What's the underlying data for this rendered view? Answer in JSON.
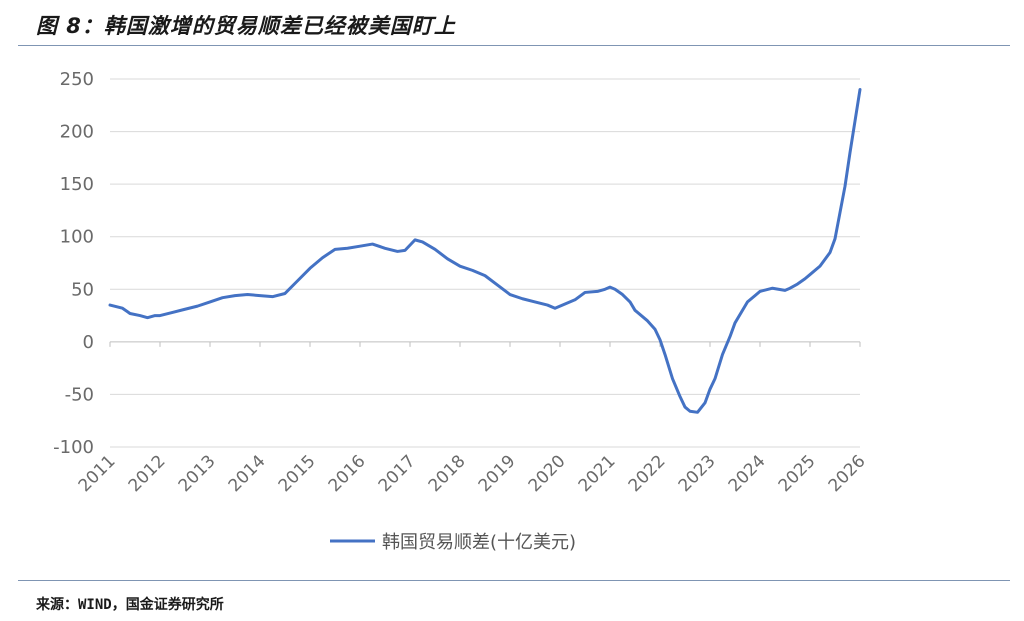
{
  "figure": {
    "title": "图 8：韩国激增的贸易顺差已经被美国盯上",
    "source": "来源：WIND，国金证券研究所"
  },
  "chart_data": {
    "type": "line",
    "title": "",
    "xlabel": "",
    "ylabel": "",
    "ylim": [
      -100,
      250
    ],
    "xlim": [
      2011,
      2026
    ],
    "yticks": [
      "-100",
      "-50",
      "0",
      "50",
      "100",
      "150",
      "200",
      "250"
    ],
    "xticks": [
      "2011",
      "2012",
      "2013",
      "2014",
      "2015",
      "2016",
      "2017",
      "2018",
      "2019",
      "2020",
      "2021",
      "2022",
      "2023",
      "2024",
      "2025",
      "2026"
    ],
    "grid": "horizontal",
    "legend": "bottom-center",
    "series": [
      {
        "name": "韩国贸易顺差(十亿美元)",
        "color": "#4472c4",
        "x": [
          2011.0,
          2011.25,
          2011.4,
          2011.6,
          2011.75,
          2011.9,
          2012.0,
          2012.25,
          2012.5,
          2012.75,
          2013.0,
          2013.25,
          2013.5,
          2013.75,
          2014.0,
          2014.25,
          2014.5,
          2014.75,
          2015.0,
          2015.25,
          2015.5,
          2015.75,
          2016.0,
          2016.25,
          2016.5,
          2016.75,
          2016.9,
          2017.0,
          2017.1,
          2017.25,
          2017.5,
          2017.75,
          2018.0,
          2018.25,
          2018.5,
          2018.75,
          2019.0,
          2019.25,
          2019.5,
          2019.75,
          2019.9,
          2020.0,
          2020.1,
          2020.3,
          2020.5,
          2020.75,
          2020.9,
          2021.0,
          2021.1,
          2021.25,
          2021.4,
          2021.5,
          2021.75,
          2021.9,
          2022.0,
          2022.1,
          2022.25,
          2022.4,
          2022.5,
          2022.6,
          2022.75,
          2022.9,
          2023.0,
          2023.1,
          2023.25,
          2023.4,
          2023.5,
          2023.6,
          2023.75,
          2023.9,
          2024.0,
          2024.25,
          2024.5,
          2024.6,
          2024.75,
          2024.9,
          2025.0,
          2025.2,
          2025.4,
          2025.5,
          2025.6,
          2025.7,
          2025.8,
          2025.9,
          2026.0
        ],
        "values": [
          35,
          32,
          27,
          25,
          23,
          25,
          25,
          28,
          31,
          34,
          38,
          42,
          44,
          45,
          44,
          43,
          46,
          58,
          70,
          80,
          88,
          89,
          91,
          93,
          89,
          86,
          87,
          92,
          97,
          95,
          88,
          79,
          72,
          68,
          63,
          54,
          45,
          41,
          38,
          35,
          32,
          34,
          36,
          40,
          47,
          48,
          50,
          52,
          50,
          45,
          38,
          30,
          20,
          12,
          2,
          -12,
          -35,
          -52,
          -62,
          -66,
          -67,
          -58,
          -45,
          -35,
          -12,
          5,
          18,
          26,
          38,
          44,
          48,
          51,
          49,
          51,
          55,
          60,
          64,
          72,
          85,
          98,
          123,
          148,
          180,
          210,
          240
        ]
      }
    ]
  }
}
